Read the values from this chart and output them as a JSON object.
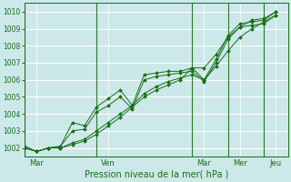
{
  "bg_color": "#cce8e8",
  "grid_color": "#ffffff",
  "line_color": "#1a6e1a",
  "xlabel": "Pression niveau de la mer( hPa )",
  "ylim": [
    1001.5,
    1010.5
  ],
  "yticks": [
    1002,
    1003,
    1004,
    1005,
    1006,
    1007,
    1008,
    1009,
    1010
  ],
  "xlim": [
    0,
    264
  ],
  "day_ticks_x": [
    12,
    84,
    180,
    216,
    252
  ],
  "day_sep_x": [
    0,
    72,
    168,
    204,
    240
  ],
  "day_labels": [
    "Mar",
    "Ven",
    "Mar",
    "Mer",
    "Jeu"
  ],
  "series": [
    [
      0,
      1002.1,
      12,
      1001.8,
      24,
      1002.0,
      36,
      1002.1,
      48,
      1003.5,
      60,
      1003.3,
      72,
      1004.4,
      84,
      1004.9,
      96,
      1005.4,
      108,
      1004.5,
      120,
      1006.3,
      132,
      1006.4,
      144,
      1006.5,
      156,
      1006.5,
      168,
      1006.7,
      180,
      1006.0,
      192,
      1007.2,
      204,
      1008.6,
      216,
      1009.3,
      228,
      1009.4,
      240,
      1009.5,
      252,
      1010.0
    ],
    [
      0,
      1002.1,
      12,
      1001.8,
      24,
      1002.0,
      36,
      1002.1,
      48,
      1003.0,
      60,
      1003.1,
      72,
      1004.1,
      84,
      1004.5,
      96,
      1005.0,
      108,
      1004.3,
      120,
      1006.0,
      132,
      1006.2,
      144,
      1006.3,
      156,
      1006.4,
      168,
      1006.5,
      180,
      1005.9,
      192,
      1007.0,
      204,
      1008.4,
      216,
      1009.1,
      228,
      1009.2,
      240,
      1009.3,
      252,
      1009.8
    ],
    [
      0,
      1002.0,
      12,
      1001.8,
      24,
      1002.0,
      36,
      1002.0,
      48,
      1002.2,
      60,
      1002.4,
      72,
      1002.8,
      84,
      1003.3,
      96,
      1003.8,
      108,
      1004.4,
      120,
      1005.0,
      132,
      1005.4,
      144,
      1005.7,
      156,
      1006.0,
      168,
      1006.7,
      180,
      1006.7,
      192,
      1007.5,
      204,
      1008.5,
      216,
      1009.1,
      228,
      1009.5,
      240,
      1009.6,
      252,
      1010.0
    ],
    [
      0,
      1002.0,
      12,
      1001.8,
      24,
      1002.0,
      36,
      1002.0,
      48,
      1002.3,
      60,
      1002.5,
      72,
      1003.0,
      84,
      1003.5,
      96,
      1004.0,
      108,
      1004.5,
      120,
      1005.2,
      132,
      1005.6,
      144,
      1005.9,
      156,
      1006.1,
      168,
      1006.3,
      180,
      1006.0,
      192,
      1006.8,
      204,
      1007.7,
      216,
      1008.5,
      228,
      1009.0,
      240,
      1009.4,
      252,
      1009.8
    ]
  ]
}
